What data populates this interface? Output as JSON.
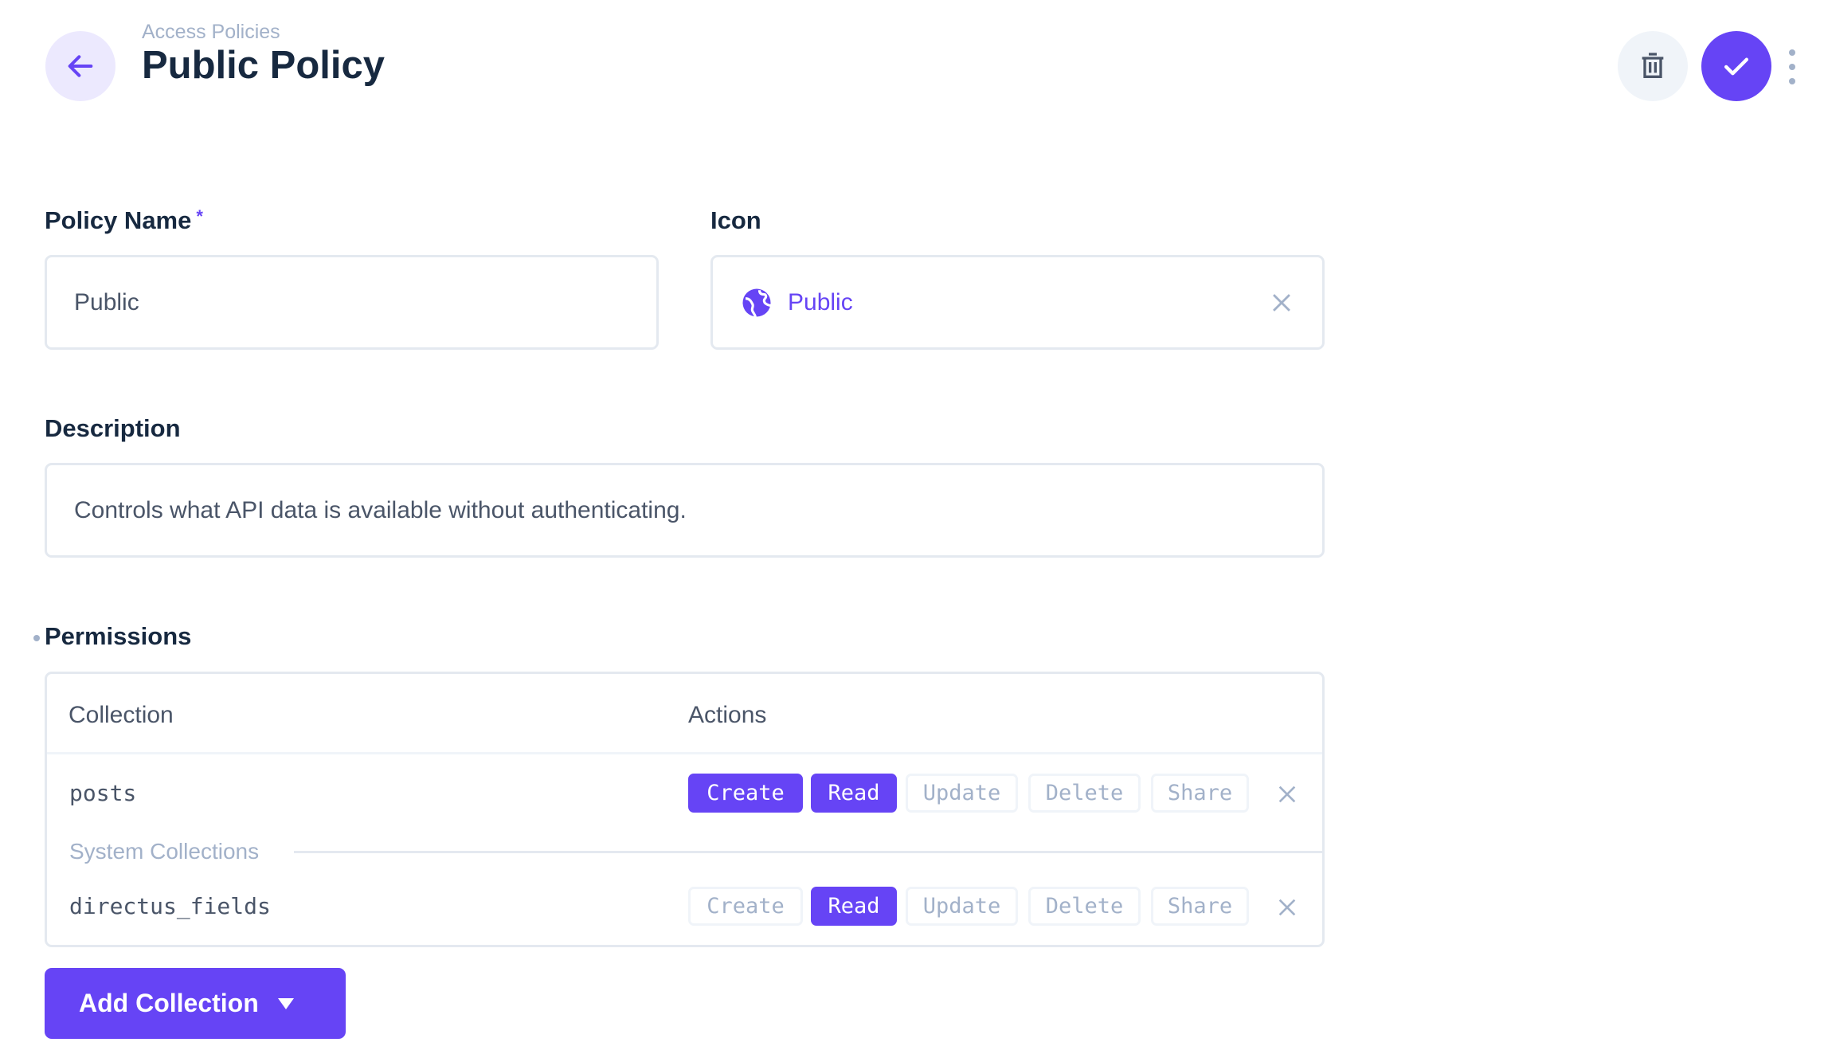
{
  "header": {
    "breadcrumb": "Access Policies",
    "title": "Public Policy"
  },
  "form": {
    "policy_name": {
      "label": "Policy Name",
      "required_marker": "*",
      "value": "Public"
    },
    "icon": {
      "label": "Icon",
      "value": "Public",
      "icon": "public-globe-icon"
    },
    "description": {
      "label": "Description",
      "value": "Controls what API data is available without authenticating."
    }
  },
  "permissions": {
    "label": "Permissions",
    "columns": [
      "Collection",
      "Actions"
    ],
    "system_label": "System Collections",
    "rows": [
      {
        "collection": "posts",
        "actions": [
          {
            "label": "Create",
            "on": true
          },
          {
            "label": "Read",
            "on": true
          },
          {
            "label": "Update",
            "on": false
          },
          {
            "label": "Delete",
            "on": false
          },
          {
            "label": "Share",
            "on": false
          }
        ]
      },
      {
        "collection": "directus_fields",
        "actions": [
          {
            "label": "Create",
            "on": false
          },
          {
            "label": "Read",
            "on": true
          },
          {
            "label": "Update",
            "on": false
          },
          {
            "label": "Delete",
            "on": false
          },
          {
            "label": "Share",
            "on": false
          }
        ]
      }
    ],
    "add_label": "Add Collection"
  },
  "colors": {
    "accent": "#6644f5",
    "muted": "#a2b1c9",
    "border": "#e4e9f0"
  }
}
